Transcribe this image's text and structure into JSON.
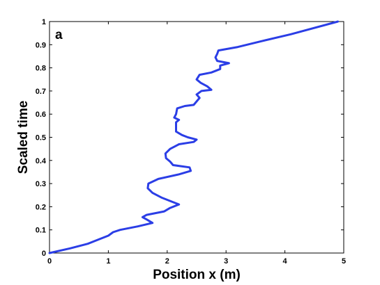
{
  "chart_data": {
    "type": "line",
    "title": "",
    "panel_label": "a",
    "xlabel": "Position x (m)",
    "ylabel": "Scaled time",
    "xlim": [
      0,
      5
    ],
    "ylim": [
      0,
      1
    ],
    "xticks": [
      "0",
      "1",
      "2",
      "3",
      "4",
      "5"
    ],
    "yticks": [
      "0",
      "0.1",
      "0.2",
      "0.3",
      "0.4",
      "0.5",
      "0.6",
      "0.7",
      "0.8",
      "0.9",
      "1"
    ],
    "grid": false,
    "legend": "none",
    "series": [
      {
        "color": "#2b3ee6",
        "points": [
          [
            0.0,
            0.0
          ],
          [
            0.35,
            0.02
          ],
          [
            0.65,
            0.04
          ],
          [
            0.85,
            0.06
          ],
          [
            1.0,
            0.075
          ],
          [
            1.08,
            0.09
          ],
          [
            1.2,
            0.1
          ],
          [
            1.5,
            0.115
          ],
          [
            1.75,
            0.13
          ],
          [
            1.65,
            0.145
          ],
          [
            1.58,
            0.155
          ],
          [
            1.65,
            0.165
          ],
          [
            1.95,
            0.18
          ],
          [
            2.05,
            0.195
          ],
          [
            2.2,
            0.21
          ],
          [
            2.05,
            0.225
          ],
          [
            1.9,
            0.24
          ],
          [
            1.75,
            0.26
          ],
          [
            1.67,
            0.28
          ],
          [
            1.68,
            0.3
          ],
          [
            1.85,
            0.32
          ],
          [
            2.2,
            0.34
          ],
          [
            2.4,
            0.355
          ],
          [
            2.38,
            0.37
          ],
          [
            2.1,
            0.38
          ],
          [
            2.05,
            0.395
          ],
          [
            1.98,
            0.41
          ],
          [
            1.97,
            0.43
          ],
          [
            2.05,
            0.45
          ],
          [
            2.2,
            0.47
          ],
          [
            2.45,
            0.48
          ],
          [
            2.5,
            0.49
          ],
          [
            2.35,
            0.5
          ],
          [
            2.25,
            0.51
          ],
          [
            2.15,
            0.525
          ],
          [
            2.15,
            0.55
          ],
          [
            2.15,
            0.565
          ],
          [
            2.2,
            0.575
          ],
          [
            2.12,
            0.585
          ],
          [
            2.15,
            0.6
          ],
          [
            2.17,
            0.625
          ],
          [
            2.3,
            0.635
          ],
          [
            2.45,
            0.64
          ],
          [
            2.5,
            0.655
          ],
          [
            2.55,
            0.67
          ],
          [
            2.5,
            0.685
          ],
          [
            2.58,
            0.7
          ],
          [
            2.75,
            0.705
          ],
          [
            2.68,
            0.72
          ],
          [
            2.57,
            0.735
          ],
          [
            2.5,
            0.75
          ],
          [
            2.55,
            0.77
          ],
          [
            2.75,
            0.78
          ],
          [
            2.9,
            0.795
          ],
          [
            2.9,
            0.81
          ],
          [
            3.05,
            0.82
          ],
          [
            2.85,
            0.83
          ],
          [
            2.82,
            0.845
          ],
          [
            2.85,
            0.86
          ],
          [
            2.87,
            0.875
          ],
          [
            3.2,
            0.89
          ],
          [
            3.6,
            0.915
          ],
          [
            4.1,
            0.945
          ],
          [
            4.9,
            1.0
          ]
        ]
      }
    ]
  }
}
